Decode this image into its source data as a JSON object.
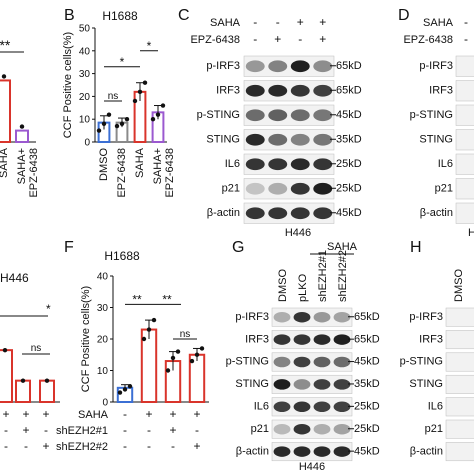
{
  "colors": {
    "blue": "#3b6fd4",
    "red": "#d9342b",
    "pink": "#e8a0a0",
    "purple": "#9b59d0",
    "gray": "#8a8a8a",
    "lightpink": "#f4cccc"
  },
  "panelA_partial": {
    "sig_top": "***",
    "xticks": [
      "SAHA",
      "SAHA+\nEPZ-6438"
    ],
    "xticks_lines": [
      [
        "SAHA"
      ],
      [
        "SAHA+",
        "EPZ-6438"
      ]
    ],
    "bar_values": [
      27,
      5
    ],
    "colors": [
      "#d9342b",
      "#9b59d0"
    ]
  },
  "panelB": {
    "letter": "B",
    "title": "H1688",
    "ylabel": "CCF Positive cells(%)",
    "yticks": [
      "0",
      "10",
      "20",
      "30",
      "40",
      "50"
    ],
    "sig": [
      "*",
      "*",
      "ns"
    ],
    "chart_data": {
      "type": "bar",
      "title": "H1688",
      "ylabel": "CCF Positive cells(%)",
      "ylim": [
        0,
        50
      ],
      "categories": [
        "DMSO",
        "EPZ-6438",
        "SAHA",
        "SAHA+EPZ-6438"
      ],
      "values": [
        8.5,
        8.5,
        22,
        13
      ],
      "errors": [
        3,
        2,
        4,
        3
      ],
      "points": [
        [
          5,
          8,
          12
        ],
        [
          7,
          8,
          10
        ],
        [
          18,
          22,
          26
        ],
        [
          10,
          12,
          16
        ]
      ],
      "colors": [
        "#3b6fd4",
        "#8a8a8a",
        "#d9342b",
        "#9b59d0"
      ]
    },
    "xticks": [
      "DMSO",
      "EPZ-6438",
      "SAHA",
      "SAHA+\nEPZ-6438"
    ],
    "xticks_lines": [
      [
        "DMSO"
      ],
      [
        "EPZ-6438"
      ],
      [
        "SAHA"
      ],
      [
        "SAHA+",
        "EPZ-6438"
      ]
    ]
  },
  "panelC": {
    "letter": "C",
    "header_rows": [
      {
        "label": "SAHA",
        "signs": [
          "-",
          "-",
          "+",
          "+"
        ]
      },
      {
        "label": "EPZ-6438",
        "signs": [
          "-",
          "+",
          "-",
          "+"
        ]
      }
    ],
    "rows": [
      {
        "label": "p-IRF3",
        "kd": "65kD"
      },
      {
        "label": "IRF3",
        "kd": "65kD"
      },
      {
        "label": "p-STING",
        "kd": "45kD"
      },
      {
        "label": "STING",
        "kd": "35kD"
      },
      {
        "label": "IL6",
        "kd": "25kD"
      },
      {
        "label": "p21",
        "kd": "25kD"
      },
      {
        "label": "β-actin",
        "kd": "45kD"
      }
    ],
    "cell": "H446",
    "bands": [
      [
        0.4,
        0.5,
        0.95,
        0.45
      ],
      [
        0.9,
        0.9,
        0.85,
        0.8
      ],
      [
        0.6,
        0.65,
        0.6,
        0.55
      ],
      [
        0.9,
        0.6,
        0.5,
        0.55
      ],
      [
        0.85,
        0.85,
        0.9,
        0.85
      ],
      [
        0.2,
        0.3,
        0.85,
        0.95
      ],
      [
        0.85,
        0.85,
        0.85,
        0.85
      ]
    ]
  },
  "panelD": {
    "letter": "D",
    "header_rows": [
      {
        "label": "SAHA",
        "signs": [
          "-"
        ]
      },
      {
        "label": "EPZ-6438",
        "signs": [
          "-"
        ]
      }
    ],
    "rows": [
      {
        "label": "p-IRF3"
      },
      {
        "label": "IRF3"
      },
      {
        "label": "p-STING"
      },
      {
        "label": "STING"
      },
      {
        "label": "IL6"
      },
      {
        "label": "p21"
      },
      {
        "label": "β-actin"
      }
    ],
    "cell_partial": "H"
  },
  "panelE_partial": {
    "title_partial": "H446",
    "sig": [
      "*",
      "ns"
    ],
    "bottom_rows": [
      {
        "signs": [
          "+",
          "+",
          "+"
        ]
      },
      {
        "signs": [
          "-",
          "+",
          "-"
        ]
      },
      {
        "signs": [
          "-",
          "-",
          "+"
        ]
      }
    ],
    "bar_values": [
      17,
      7,
      7
    ],
    "colors": [
      "#d9342b",
      "#d9342b",
      "#d9342b"
    ]
  },
  "panelF": {
    "letter": "F",
    "title": "H1688",
    "ylabel": "CCF Positive cells(%)",
    "yticks": [
      "0",
      "10",
      "20",
      "30",
      "40"
    ],
    "sig": [
      "**",
      "**",
      "ns"
    ],
    "chart_data": {
      "type": "bar",
      "title": "H1688",
      "ylabel": "CCF Positive cells(%)",
      "ylim": [
        0,
        40
      ],
      "categories": [
        "DMSO",
        "SAHA",
        "SAHA+shEZH2#1",
        "SAHA+shEZH2#2"
      ],
      "values": [
        4.5,
        23,
        13,
        15
      ],
      "errors": [
        1,
        3,
        3,
        2
      ],
      "points": [
        [
          3,
          4,
          5
        ],
        [
          20,
          23,
          26
        ],
        [
          10,
          14,
          16
        ],
        [
          13,
          15,
          17
        ]
      ],
      "colors": [
        "#3b6fd4",
        "#d9342b",
        "#d9342b",
        "#d9342b"
      ]
    },
    "bottom_rows": [
      {
        "label": "SAHA",
        "signs": [
          "-",
          "+",
          "+",
          "+"
        ]
      },
      {
        "label": "shEZH2#1",
        "signs": [
          "-",
          "-",
          "+",
          "-"
        ]
      },
      {
        "label": "shEZH2#2",
        "signs": [
          "-",
          "-",
          "-",
          "+"
        ]
      }
    ]
  },
  "panelG": {
    "letter": "G",
    "saha": "SAHA",
    "lanes": [
      "DMSO",
      "pLKO",
      "shEZH2#1",
      "shEZH2#2"
    ],
    "rows": [
      {
        "label": "p-IRF3",
        "kd": "65kD"
      },
      {
        "label": "IRF3",
        "kd": "65kD"
      },
      {
        "label": "p-STING",
        "kd": "45kD"
      },
      {
        "label": "STING",
        "kd": "35kD"
      },
      {
        "label": "IL6",
        "kd": "25kD"
      },
      {
        "label": "p21",
        "kd": "25kD"
      },
      {
        "label": "β-actin",
        "kd": "45kD"
      }
    ],
    "cell": "H446",
    "bands": [
      [
        0.3,
        0.85,
        0.4,
        0.35
      ],
      [
        0.85,
        0.85,
        0.9,
        0.95
      ],
      [
        0.5,
        0.8,
        0.65,
        0.6
      ],
      [
        0.95,
        0.45,
        0.8,
        0.8
      ],
      [
        0.8,
        0.85,
        0.8,
        0.8
      ],
      [
        0.25,
        0.85,
        0.3,
        0.35
      ],
      [
        0.9,
        0.9,
        0.9,
        0.9
      ]
    ]
  },
  "panelH": {
    "letter": "H",
    "lane_partial": "DMSO",
    "rows": [
      {
        "label": "p-IRF3"
      },
      {
        "label": "IRF3"
      },
      {
        "label": "p-STING"
      },
      {
        "label": "STING"
      },
      {
        "label": "IL6"
      },
      {
        "label": "p21"
      },
      {
        "label": "β-actin"
      }
    ]
  }
}
